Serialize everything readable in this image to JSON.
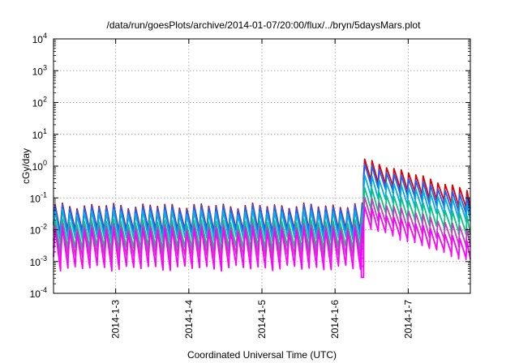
{
  "chart_data": {
    "type": "line",
    "title": "/data/run/goesPlots/archive/2014-01-07/20:00/flux/../bryn/5daysMars.plot",
    "xlabel": "Coordinated Universal Time (UTC)",
    "ylabel": "cGy/day",
    "yscale": "log",
    "ylim_exponent": [
      -4,
      4
    ],
    "y_ticks": [
      {
        "base": "10",
        "exp": "-4",
        "value": -4
      },
      {
        "base": "10",
        "exp": "-3",
        "value": -3
      },
      {
        "base": "10",
        "exp": "-2",
        "value": -2
      },
      {
        "base": "10",
        "exp": "-1",
        "value": -1
      },
      {
        "base": "10",
        "exp": "0",
        "value": 0
      },
      {
        "base": "10",
        "exp": "1",
        "value": 1
      },
      {
        "base": "10",
        "exp": "2",
        "value": 2
      },
      {
        "base": "10",
        "exp": "3",
        "value": 3
      },
      {
        "base": "10",
        "exp": "4",
        "value": 4
      }
    ],
    "x_range_days": [
      2.15,
      7.85
    ],
    "x_ticks": [
      {
        "label": "2014-1-3",
        "day": 3
      },
      {
        "label": "2014-1-4",
        "day": 4
      },
      {
        "label": "2014-1-5",
        "day": 5
      },
      {
        "label": "2014-1-6",
        "day": 6
      },
      {
        "label": "2014-1-7",
        "day": 7
      }
    ],
    "grid": true,
    "sawtooth_period_days": 0.1,
    "event_onset_day": 6.39,
    "series": [
      {
        "color": "#e00000",
        "pre_peak_log": -1.25,
        "pre_trough_log": -2.05,
        "post_peak_log": [
          0.2,
          -0.8
        ]
      },
      {
        "color": "#1f5fff",
        "pre_peak_log": -1.3,
        "pre_trough_log": -2.1,
        "post_peak_log": [
          0.05,
          -1.0
        ]
      },
      {
        "color": "#00b0e0",
        "pre_peak_log": -1.45,
        "pre_trough_log": -2.3,
        "post_peak_log": [
          -0.3,
          -1.2
        ]
      },
      {
        "color": "#10c080",
        "pre_peak_log": -1.75,
        "pre_trough_log": -2.6,
        "post_peak_log": [
          -0.7,
          -1.6
        ]
      },
      {
        "color": "#c040c0",
        "pre_peak_log": -1.9,
        "pre_trough_log": -2.85,
        "post_peak_log": [
          -1.0,
          -2.0
        ]
      },
      {
        "color": "#ff00ff",
        "pre_peak_log": -2.0,
        "pre_trough_log": -3.2,
        "post_peak_log": [
          -1.3,
          -2.4
        ]
      }
    ]
  }
}
